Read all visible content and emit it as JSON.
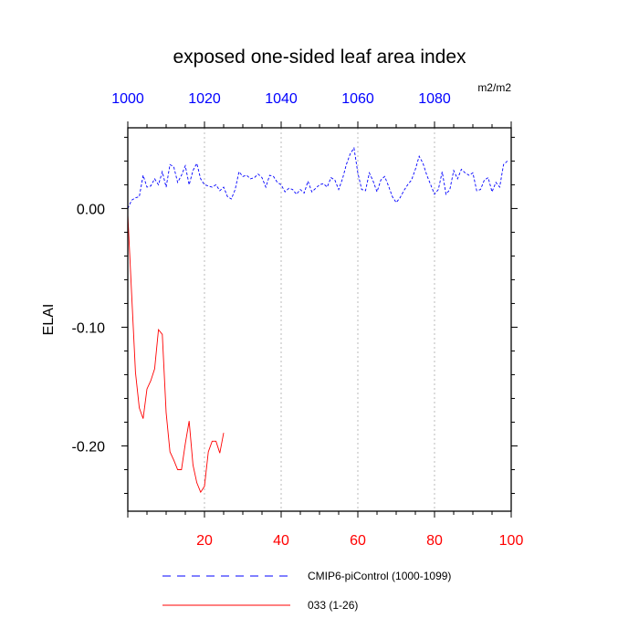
{
  "chart_data": {
    "type": "line",
    "title": "exposed one-sided leaf area index",
    "ylabel": "ELAI",
    "units": "m2/m2",
    "xlim": [
      0,
      100
    ],
    "ylim": [
      -0.255,
      0.068
    ],
    "x_ticks": [
      "20",
      "40",
      "60",
      "80",
      "100"
    ],
    "x_tick_values": [
      20,
      40,
      60,
      80,
      100
    ],
    "x2_ticks": [
      "1000",
      "1020",
      "1040",
      "1060",
      "1080"
    ],
    "x2_tick_values": [
      0,
      20,
      40,
      60,
      80
    ],
    "y_ticks": [
      "0.00",
      "-0.10",
      "-0.20"
    ],
    "y_tick_values": [
      0.0,
      -0.1,
      -0.2
    ],
    "grid": "vertical-dotted",
    "colors": {
      "bottom_axis_labels": "#ff0000",
      "top_axis_labels": "#0000ff"
    },
    "series": [
      {
        "name": "CMIP6-piControl (1000-1099)",
        "style": "dashed",
        "color": "#0000ff",
        "x": [
          0,
          1,
          2,
          3,
          4,
          5,
          6,
          7,
          8,
          9,
          10,
          11,
          12,
          13,
          14,
          15,
          16,
          17,
          18,
          19,
          20,
          21,
          22,
          23,
          24,
          25,
          26,
          27,
          28,
          29,
          30,
          31,
          32,
          33,
          34,
          35,
          36,
          37,
          38,
          39,
          40,
          41,
          42,
          43,
          44,
          45,
          46,
          47,
          48,
          49,
          50,
          51,
          52,
          53,
          54,
          55,
          56,
          57,
          58,
          59,
          60,
          61,
          62,
          63,
          64,
          65,
          66,
          67,
          68,
          69,
          70,
          71,
          72,
          73,
          74,
          75,
          76,
          77,
          78,
          79,
          80,
          81,
          82,
          83,
          84,
          85,
          86,
          87,
          88,
          89,
          90,
          91,
          92,
          93,
          94,
          95,
          96,
          97,
          98,
          99
        ],
        "values": [
          0.0,
          0.007,
          0.009,
          0.01,
          0.028,
          0.018,
          0.019,
          0.025,
          0.02,
          0.031,
          0.018,
          0.037,
          0.035,
          0.022,
          0.028,
          0.036,
          0.02,
          0.032,
          0.038,
          0.025,
          0.02,
          0.019,
          0.018,
          0.02,
          0.015,
          0.018,
          0.01,
          0.008,
          0.016,
          0.031,
          0.027,
          0.028,
          0.025,
          0.026,
          0.029,
          0.026,
          0.018,
          0.028,
          0.027,
          0.022,
          0.02,
          0.014,
          0.017,
          0.016,
          0.012,
          0.016,
          0.013,
          0.023,
          0.014,
          0.017,
          0.02,
          0.021,
          0.018,
          0.026,
          0.024,
          0.016,
          0.025,
          0.037,
          0.046,
          0.051,
          0.03,
          0.016,
          0.015,
          0.03,
          0.023,
          0.014,
          0.024,
          0.027,
          0.019,
          0.01,
          0.005,
          0.009,
          0.015,
          0.02,
          0.024,
          0.033,
          0.044,
          0.038,
          0.028,
          0.02,
          0.012,
          0.016,
          0.031,
          0.012,
          0.016,
          0.032,
          0.025,
          0.033,
          0.03,
          0.028,
          0.03,
          0.015,
          0.016,
          0.024,
          0.026,
          0.014,
          0.022,
          0.018,
          0.037,
          0.04
        ]
      },
      {
        "name": "033 (1-26)",
        "style": "solid",
        "color": "#ff0000",
        "x": [
          0,
          1,
          2,
          3,
          4,
          5,
          6,
          7,
          8,
          9,
          10,
          11,
          12,
          13,
          14,
          15,
          16,
          17,
          18,
          19,
          20,
          21,
          22,
          23,
          24,
          25
        ],
        "values": [
          -0.005,
          -0.072,
          -0.138,
          -0.168,
          -0.177,
          -0.152,
          -0.145,
          -0.135,
          -0.102,
          -0.106,
          -0.172,
          -0.205,
          -0.212,
          -0.22,
          -0.22,
          -0.198,
          -0.179,
          -0.216,
          -0.231,
          -0.239,
          -0.234,
          -0.205,
          -0.196,
          -0.196,
          -0.206,
          -0.189
        ]
      }
    ]
  }
}
